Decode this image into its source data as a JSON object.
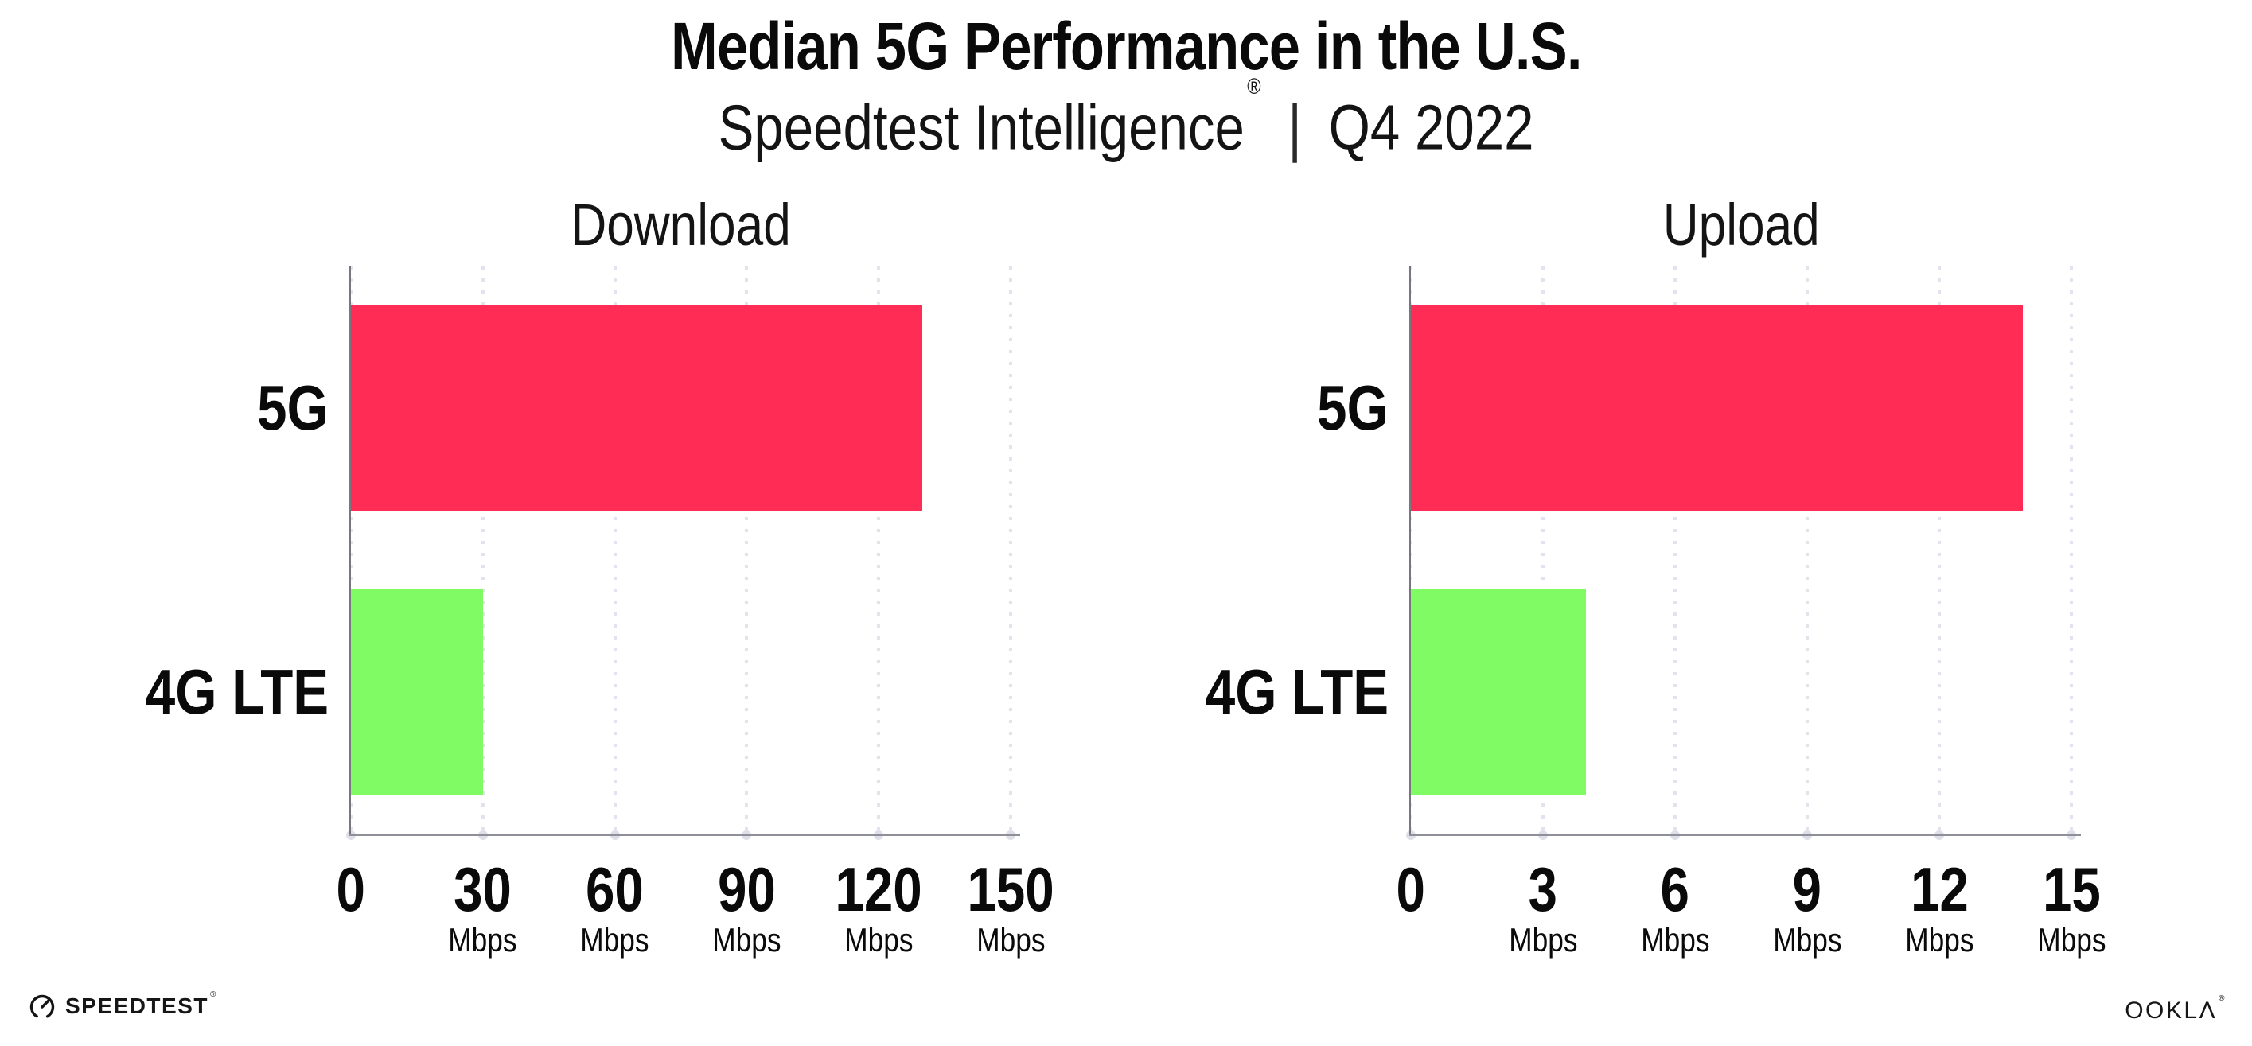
{
  "header": {
    "title": "Median 5G Performance in the U.S.",
    "subtitle": {
      "brand": "Speedtest Intelligence",
      "registered_mark": "®",
      "separator": "|",
      "period": "Q4 2022"
    }
  },
  "chart_data": [
    {
      "type": "bar",
      "orientation": "horizontal",
      "title": "Download",
      "categories": [
        "5G",
        "4G LTE"
      ],
      "values": [
        130,
        30
      ],
      "value_unit": "Mbps",
      "xlim": [
        0,
        150
      ],
      "xticks": [
        0,
        30,
        60,
        90,
        120,
        150
      ],
      "xtick_unit_label": "Mbps",
      "unit_shown_on_zero_tick": false,
      "bar_colors": [
        "#FF2D55",
        "#80FB64"
      ],
      "grid": "dotted-vertical",
      "legend": "none"
    },
    {
      "type": "bar",
      "orientation": "horizontal",
      "title": "Upload",
      "categories": [
        "5G",
        "4G LTE"
      ],
      "values": [
        13.9,
        3.97
      ],
      "value_unit": "Mbps",
      "xlim": [
        0,
        15
      ],
      "xticks": [
        0,
        3,
        6,
        9,
        12,
        15
      ],
      "xtick_unit_label": "Mbps",
      "unit_shown_on_zero_tick": false,
      "bar_colors": [
        "#FF2D55",
        "#80FB64"
      ],
      "grid": "dotted-vertical",
      "legend": "none"
    }
  ],
  "footer": {
    "speedtest": {
      "label": "SPEEDTEST",
      "mark": "®",
      "icon": "speedtest-gauge-icon"
    },
    "ookla": {
      "label": "OOKLA",
      "display_text": "OOKLΛ",
      "mark": "®"
    }
  },
  "colors": {
    "bar_5g": "#FF2D55",
    "bar_4g_lte": "#80FB64",
    "y_axis_line": "#77777F",
    "x_axis_line": "#8F8F97",
    "grid_dots": "#E3E3EE",
    "axis_tick_dots": "#DFDFE9",
    "text": "#0A0A0A",
    "background": "#FFFFFF"
  }
}
